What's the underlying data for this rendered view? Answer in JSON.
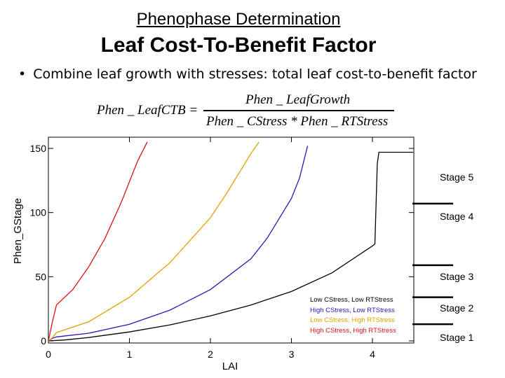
{
  "heading": {
    "title": "Phenophase Determination",
    "subtitle": "Leaf Cost-To-Benefit Factor"
  },
  "bullet": {
    "text": "Combine leaf growth with stresses: total leaf cost-to-benefit factor"
  },
  "formula": {
    "lhs": "Phen _ LeafCTB =",
    "numerator": "Phen _ LeafGrowth",
    "denominator": "Phen _ CStress * Phen _ RTStress"
  },
  "chart_data": {
    "type": "line",
    "xlabel": "LAI",
    "ylabel": "Phen_GStage",
    "xlim": [
      0,
      4.5
    ],
    "ylim": [
      0,
      155
    ],
    "x_ticks": [
      0,
      1,
      2,
      3,
      4
    ],
    "y_ticks": [
      0,
      50,
      100,
      150
    ],
    "grid": false,
    "legend": "bottom-right inside plot",
    "series": [
      {
        "name": "Low CStress, Low RTStress",
        "color": "#000000",
        "points": [
          [
            0,
            0
          ],
          [
            0.2,
            0.7
          ],
          [
            0.5,
            2.7
          ],
          [
            1.0,
            7
          ],
          [
            1.5,
            12.5
          ],
          [
            2.0,
            19.5
          ],
          [
            2.5,
            28
          ],
          [
            3.0,
            38.5
          ],
          [
            3.5,
            53
          ],
          [
            4.0,
            74
          ],
          [
            4.03,
            75.5
          ],
          [
            4.06,
            138
          ],
          [
            4.08,
            147
          ],
          [
            4.5,
            147
          ]
        ]
      },
      {
        "name": "High CStress, Low RTStress",
        "color": "#3a10b0",
        "points": [
          [
            0,
            0
          ],
          [
            0.05,
            2
          ],
          [
            0.1,
            3.1
          ],
          [
            0.5,
            6
          ],
          [
            1.0,
            13
          ],
          [
            1.5,
            24
          ],
          [
            2.0,
            40
          ],
          [
            2.5,
            64
          ],
          [
            2.7,
            80
          ],
          [
            3.0,
            111
          ],
          [
            3.1,
            127
          ],
          [
            3.2,
            152
          ]
        ]
      },
      {
        "name": "Low CStress, High RTStress",
        "color": "#e0a000",
        "points": [
          [
            0,
            0
          ],
          [
            0.05,
            2.5
          ],
          [
            0.1,
            6.5
          ],
          [
            0.5,
            15
          ],
          [
            1.0,
            34
          ],
          [
            1.5,
            61
          ],
          [
            2.0,
            96
          ],
          [
            2.2,
            115
          ],
          [
            2.5,
            146
          ],
          [
            2.6,
            155
          ]
        ]
      },
      {
        "name": "High CStress, High RTStress",
        "color": "#dd1010",
        "points": [
          [
            0,
            0
          ],
          [
            0.05,
            15
          ],
          [
            0.1,
            28
          ],
          [
            0.3,
            40
          ],
          [
            0.5,
            58
          ],
          [
            0.7,
            80
          ],
          [
            0.9,
            108
          ],
          [
            1.1,
            140
          ],
          [
            1.22,
            155
          ]
        ]
      }
    ],
    "stage_markers": [
      {
        "label": "Stage 5"
      },
      {
        "label": "Stage 4",
        "y": 107
      },
      {
        "label": "Stage 3",
        "y": 59
      },
      {
        "label": "Stage 2",
        "y": 34
      },
      {
        "label": "Stage 1",
        "y": 13
      }
    ]
  }
}
